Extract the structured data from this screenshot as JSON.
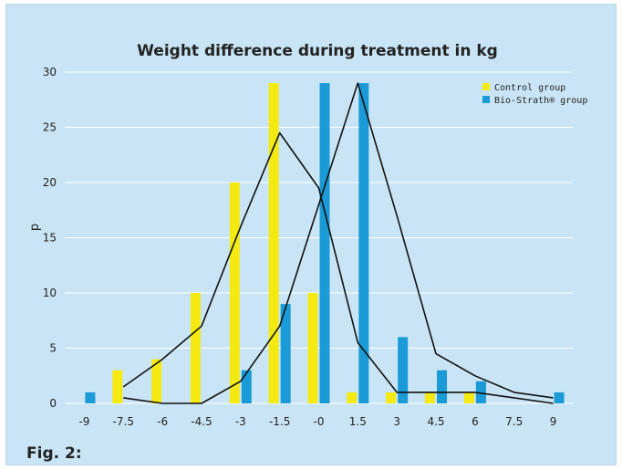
{
  "chart_data": {
    "type": "bar",
    "title": "Weight difference during treatment in kg",
    "xlabel": "",
    "ylabel": "p",
    "ylim": [
      0,
      30
    ],
    "yticks": [
      0,
      5,
      10,
      15,
      20,
      25,
      30
    ],
    "grid": true,
    "legend_position": "top-right",
    "categories": [
      "-9",
      "-7.5",
      "-6",
      "-4.5",
      "-3",
      "-1.5",
      "-0",
      "1.5",
      "3",
      "4.5",
      "6",
      "7.5",
      "9"
    ],
    "series": [
      {
        "name": "Control group",
        "color": "#f4ea12",
        "values": [
          0,
          3,
          4,
          10,
          20,
          29,
          10,
          1,
          1,
          1,
          1,
          0,
          0
        ]
      },
      {
        "name": "Bio-Strath® group",
        "color": "#1a9ad6",
        "values": [
          1,
          0,
          0,
          0,
          3,
          9,
          29,
          29,
          6,
          3,
          2,
          0,
          1
        ]
      }
    ],
    "lines": [
      {
        "series": "Control group",
        "x": [
          "-7.5",
          "-6",
          "-4.5",
          "-3",
          "-1.5",
          "-0",
          "1.5",
          "3",
          "4.5",
          "6",
          "7.5",
          "9"
        ],
        "values": [
          1.5,
          4,
          7,
          16,
          24.5,
          19.5,
          5.5,
          1,
          1,
          1,
          0.5,
          0
        ]
      },
      {
        "series": "Bio-Strath® group",
        "x": [
          "-7.5",
          "-6",
          "-4.5",
          "-3",
          "-1.5",
          "-0",
          "1.5",
          "3",
          "4.5",
          "6",
          "7.5",
          "9"
        ],
        "values": [
          0.5,
          0,
          0,
          2,
          7,
          18,
          29,
          17,
          4.5,
          2.5,
          1,
          0.5
        ]
      }
    ]
  },
  "caption": "Fig. 2:"
}
